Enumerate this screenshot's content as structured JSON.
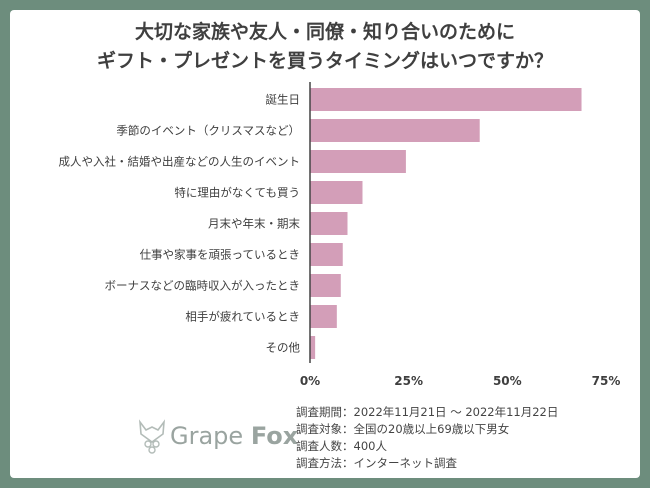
{
  "colors": {
    "background": "#6d8d7d",
    "card": "#ffffff",
    "bar": "#d39eb8",
    "axis": "#444444",
    "text": "#3f3f3f"
  },
  "chart_data": {
    "type": "bar",
    "orientation": "horizontal",
    "title_lines": [
      "大切な家族や友人・同僚・知り合いのために",
      "ギフト・プレゼントを買うタイミングはいつですか？"
    ],
    "categories": [
      "誕生日",
      "季節のイベント（クリスマスなど）",
      "成人や入社・結婚や出産などの人生のイベント",
      "特に理由がなくても買う",
      "月末や年末・期末",
      "仕事や家事を頑張っているとき",
      "ボーナスなどの臨時収入が入ったとき",
      "相手が疲れているとき",
      "その他"
    ],
    "values": [
      68.8,
      43.0,
      24.3,
      13.3,
      9.5,
      8.3,
      7.8,
      6.8,
      1.3
    ],
    "unit": "%",
    "xlim": [
      0,
      75
    ],
    "xticks": [
      0,
      25,
      50,
      75
    ],
    "xtick_labels": [
      "0%",
      "25%",
      "50%",
      "75%"
    ],
    "grid": false
  },
  "logo": {
    "text_light": "Grape",
    "text_bold": "Fox",
    "icon": "fox-grape-icon"
  },
  "survey": [
    "調査期間：2022年11月21日 ～ 2022年11月22日",
    "調査対象：全国の20歳以上69歳以下男女",
    "調査人数：400人",
    "調査方法：インターネット調査"
  ]
}
